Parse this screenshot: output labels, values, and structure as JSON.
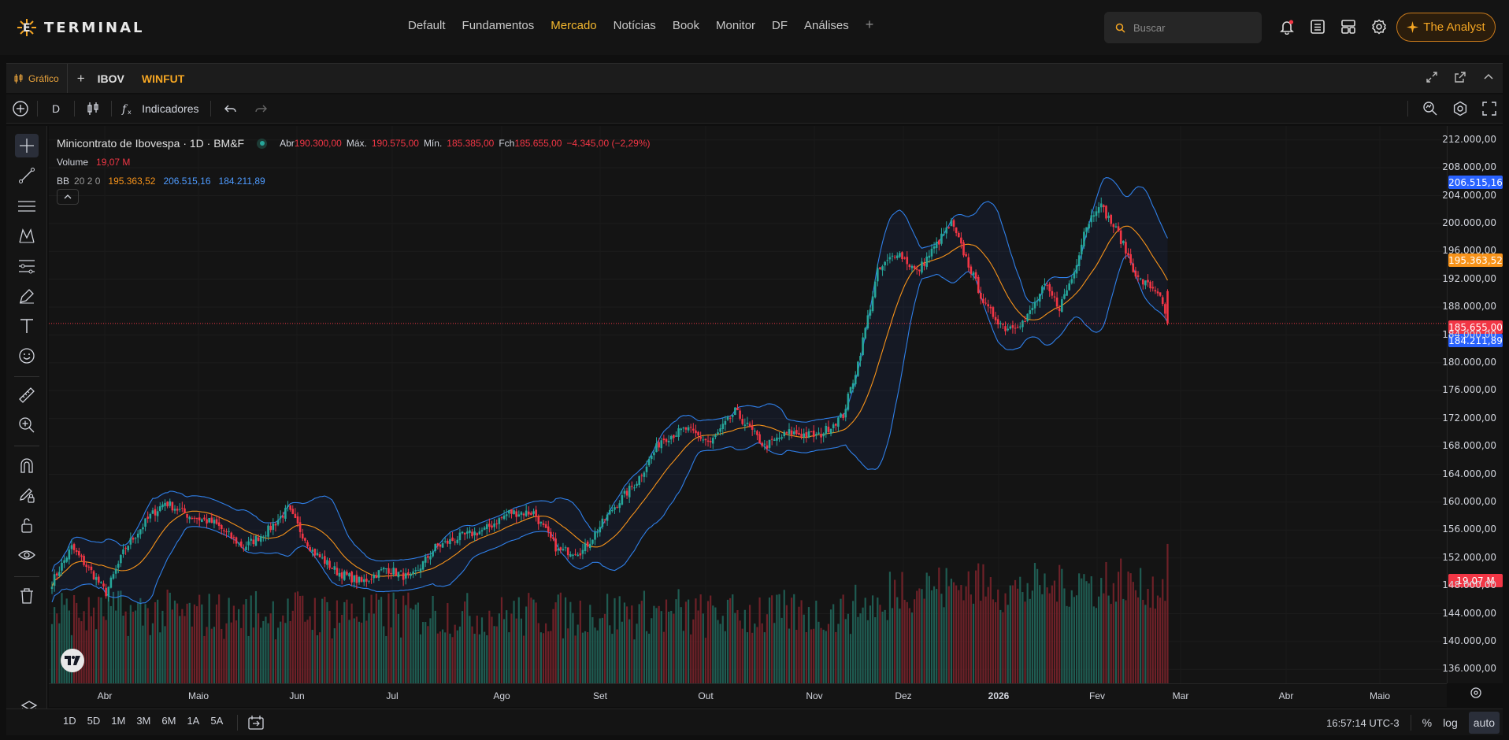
{
  "app": {
    "logo_text": "TERMINAL"
  },
  "nav": {
    "items": [
      "Default",
      "Fundamentos",
      "Mercado",
      "Notícias",
      "Book",
      "Monitor",
      "DF",
      "Análises"
    ],
    "active_index": 2,
    "accent": "#f5b82e"
  },
  "search": {
    "placeholder": "Buscar"
  },
  "header_icons": [
    "bell-icon",
    "watchlist-icon",
    "layout-icon",
    "gear-icon"
  ],
  "analyst_button": {
    "label": "The Analyst"
  },
  "widget": {
    "tab_label": "Gráfico",
    "symbols": [
      "IBOV",
      "WINFUT"
    ],
    "active_symbol": "WINFUT"
  },
  "chart_toolbar": {
    "interval": "D",
    "indicators_label": "Indicadores"
  },
  "legend": {
    "title": "Minicontrato de Ibovespa · 1D · BM&F",
    "open_label": "Abr",
    "open": "190.300,00",
    "high_label": "Máx.",
    "high": "190.575,00",
    "low_label": "Mín.",
    "low": "185.385,00",
    "close_label": "Fch",
    "close": "185.655,00",
    "change": "−4.345,00 (−2,29%)",
    "volume_label": "Volume",
    "volume": "19,07 M",
    "bb_label": "BB",
    "bb_params": "20 2 0",
    "bb_mid": "195.363,52",
    "bb_upper": "206.515,16",
    "bb_lower": "184.211,89"
  },
  "price_axis": {
    "ticks": [
      "212.000,00",
      "208.000,00",
      "204.000,00",
      "200.000,00",
      "196.000,00",
      "192.000,00",
      "188.000,00",
      "184.000,00",
      "180.000,00",
      "176.000,00",
      "172.000,00",
      "168.000,00",
      "164.000,00",
      "160.000,00",
      "156.000,00",
      "152.000,00",
      "148.000,00",
      "144.000,00",
      "140.000,00",
      "136.000,00"
    ],
    "badge_upper": "206.515,16",
    "badge_mid": "195.363,52",
    "badge_close": "185.655,00",
    "badge_lower": "184.211,89",
    "badge_volume": "19,07 M"
  },
  "time_axis": {
    "ticks": [
      "Abr",
      "Maio",
      "Jun",
      "Jul",
      "Ago",
      "Set",
      "Out",
      "Nov",
      "Dez",
      "2026",
      "Fev",
      "Mar",
      "Abr",
      "Maio"
    ]
  },
  "ranges": [
    "1D",
    "5D",
    "1M",
    "3M",
    "6M",
    "1A",
    "5A"
  ],
  "bottom_right": {
    "clock": "16:57:14 UTC-3",
    "percent": "%",
    "log": "log",
    "auto": "auto"
  },
  "colors": {
    "up": "#26a69a",
    "down": "#f23645",
    "bb_band": "#2962ff",
    "bb_mid": "#f7931a",
    "accent": "#f5a623"
  },
  "chart_data": {
    "type": "candlestick",
    "symbol": "Minicontrato de Ibovespa",
    "interval": "1D",
    "ylim": [
      134000,
      214000
    ],
    "anchors": [
      [
        0,
        148500
      ],
      [
        8,
        153500
      ],
      [
        16,
        150000
      ],
      [
        22,
        147000
      ],
      [
        30,
        153500
      ],
      [
        40,
        158000
      ],
      [
        46,
        160000
      ],
      [
        56,
        158000
      ],
      [
        66,
        157000
      ],
      [
        78,
        153500
      ],
      [
        88,
        156000
      ],
      [
        96,
        159000
      ],
      [
        106,
        153000
      ],
      [
        116,
        150000
      ],
      [
        126,
        148500
      ],
      [
        136,
        150500
      ],
      [
        146,
        149000
      ],
      [
        156,
        153500
      ],
      [
        166,
        155000
      ],
      [
        176,
        156000
      ],
      [
        186,
        158500
      ],
      [
        196,
        158500
      ],
      [
        206,
        153000
      ],
      [
        216,
        153000
      ],
      [
        228,
        159000
      ],
      [
        238,
        163000
      ],
      [
        248,
        169000
      ],
      [
        258,
        170500
      ],
      [
        268,
        168500
      ],
      [
        278,
        173000
      ],
      [
        290,
        168000
      ],
      [
        300,
        170000
      ],
      [
        312,
        169500
      ],
      [
        322,
        172500
      ],
      [
        328,
        180000
      ],
      [
        336,
        193000
      ],
      [
        344,
        196000
      ],
      [
        352,
        193000
      ],
      [
        360,
        197000
      ],
      [
        366,
        200000
      ],
      [
        372,
        195000
      ],
      [
        380,
        188000
      ],
      [
        388,
        185000
      ],
      [
        396,
        186000
      ],
      [
        404,
        191000
      ],
      [
        410,
        188000
      ],
      [
        416,
        193000
      ],
      [
        420,
        199000
      ],
      [
        426,
        203000
      ],
      [
        434,
        198500
      ],
      [
        442,
        192000
      ],
      [
        450,
        190300
      ],
      [
        454,
        185655
      ]
    ],
    "volume_range": [
      0,
      30
    ]
  }
}
